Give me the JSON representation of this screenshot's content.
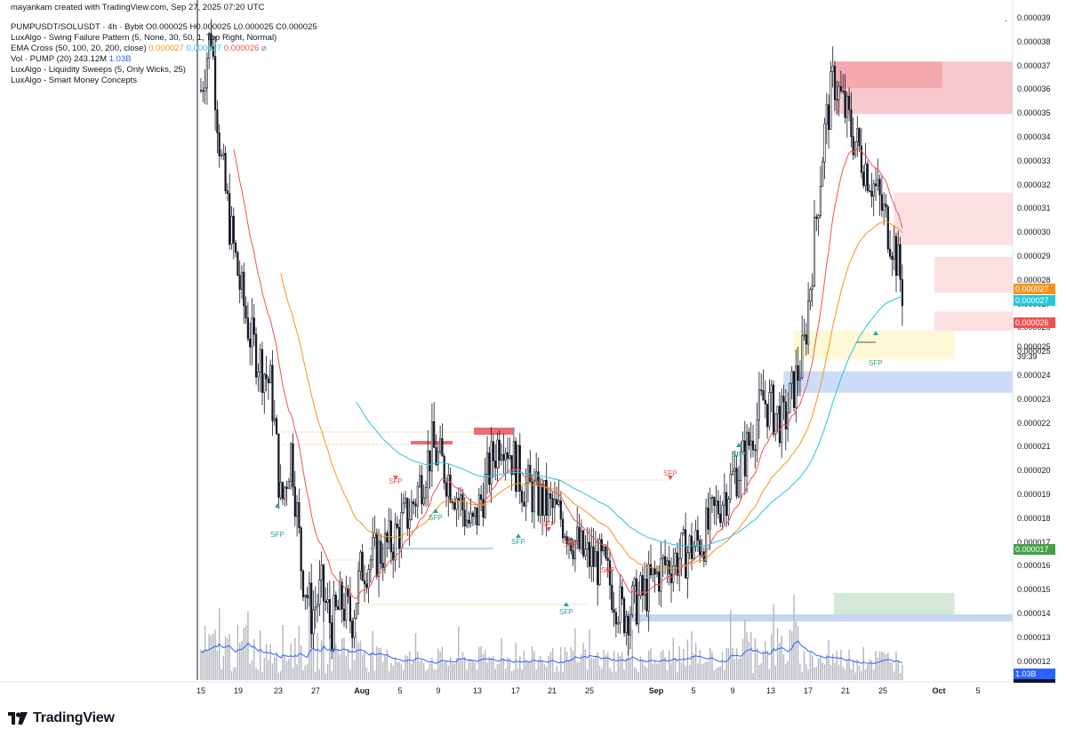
{
  "attribution": "mayankam created with TradingView.com, Sep 27, 2025 07:20 UTC",
  "legend": {
    "symbol_line": "PUMPUSDT/SOLUSDT · 4h · Bybit  O0.000025  H0.000025  L0.000025  C0.000025",
    "sfp_line": "LuxAlgo - Swing Failure Pattern (5, None, 30, 50, 1, Top Right, Normal)",
    "ema_label": "EMA Cross (50, 100, 20, 200, close)",
    "ema_v1": "0.000027",
    "ema_v2": "0.000027",
    "ema_v3": "0.000026",
    "ema_v4": "⌀",
    "vol_label": "Vol · PUMP (20)",
    "vol_v1": "243.12M",
    "vol_v2": "1.03B",
    "sweeps_line": "LuxAlgo - Liquidity Sweeps (5, Only Wicks, 25)",
    "smc_line": "LuxAlgo - Smart Money Concepts"
  },
  "price_axis": {
    "ticks": [
      "0.000039",
      "0.000038",
      "0.000037",
      "0.000036",
      "0.000035",
      "0.000034",
      "0.000033",
      "0.000032",
      "0.000031",
      "0.000030",
      "0.000029",
      "0.000028",
      "0.000027",
      "0.000026",
      "0.000025",
      "0.000024",
      "0.000023",
      "0.000022",
      "0.000021",
      "0.000020",
      "0.000019",
      "0.000018",
      "0.000017",
      "0.000016",
      "0.000015",
      "0.000014",
      "0.000013",
      "0.000012"
    ],
    "tags": {
      "ema_orange": "0.000027",
      "ema_cyan": "0.000027",
      "ema_red": "0.000026",
      "close": "0.000025",
      "countdown": "39:39",
      "green": "0.000017",
      "volume": "1.03B"
    },
    "colors": {
      "orange": "#f7931a",
      "cyan": "#26c6da",
      "red": "#ef5350",
      "green": "#43a047",
      "blue": "#2962ff"
    }
  },
  "time_axis": {
    "ticks": [
      "15",
      "19",
      "23",
      "27",
      "Aug",
      "5",
      "9",
      "13",
      "17",
      "21",
      "25",
      "Sep",
      "5",
      "9",
      "13",
      "17",
      "21",
      "25",
      "Oct",
      "5"
    ]
  },
  "sfp_labels": {
    "label": "SFP"
  },
  "brand": "TradingView",
  "chart_data": {
    "type": "candlestick",
    "title": "PUMPUSDT/SOLUSDT",
    "interval": "4h",
    "exchange": "Bybit",
    "ylim": [
      1.15e-05,
      3.95e-05
    ],
    "x_range": [
      "Jul 15",
      "Oct 7"
    ],
    "ohlc_last": {
      "open": 2.5e-05,
      "high": 2.5e-05,
      "low": 2.5e-05,
      "close": 2.5e-05
    },
    "price_path": [
      [
        "Jul 15",
        3.6e-05
      ],
      [
        "Jul 16",
        3.85e-05
      ],
      [
        "Jul 17",
        3.3e-05
      ],
      [
        "Jul 18",
        3e-05
      ],
      [
        "Jul 19",
        2.75e-05
      ],
      [
        "Jul 20",
        2.55e-05
      ],
      [
        "Jul 21",
        2.45e-05
      ],
      [
        "Jul 22",
        2.35e-05
      ],
      [
        "Jul 23",
        1.85e-05
      ],
      [
        "Jul 24",
        2.1e-05
      ],
      [
        "Jul 25",
        1.6e-05
      ],
      [
        "Jul 26",
        1.4e-05
      ],
      [
        "Jul 27",
        1.5e-05
      ],
      [
        "Jul 28",
        1.35e-05
      ],
      [
        "Jul 29",
        1.45e-05
      ],
      [
        "Jul 30",
        1.38e-05
      ],
      [
        "Jul 31",
        1.6e-05
      ],
      [
        "Aug 2",
        1.7e-05
      ],
      [
        "Aug 4",
        1.85e-05
      ],
      [
        "Aug 6",
        2.1e-05
      ],
      [
        "Aug 8",
        1.95e-05
      ],
      [
        "Aug 10",
        1.75e-05
      ],
      [
        "Aug 12",
        2.05e-05
      ],
      [
        "Aug 13",
        2.17e-05
      ],
      [
        "Aug 15",
        1.95e-05
      ],
      [
        "Aug 17",
        1.87e-05
      ],
      [
        "Aug 19",
        1.8e-05
      ],
      [
        "Aug 21",
        1.65e-05
      ],
      [
        "Aug 23",
        1.6e-05
      ],
      [
        "Aug 25",
        1.4e-05
      ],
      [
        "Aug 27",
        1.48e-05
      ],
      [
        "Aug 29",
        1.6e-05
      ],
      [
        "Aug 31",
        1.65e-05
      ],
      [
        "Sep 2",
        1.72e-05
      ],
      [
        "Sep 4",
        1.9e-05
      ],
      [
        "Sep 6",
        2.05e-05
      ],
      [
        "Sep 8",
        2.3e-05
      ],
      [
        "Sep 10",
        2.2e-05
      ],
      [
        "Sep 12",
        2.5e-05
      ],
      [
        "Sep 14",
        3.4e-05
      ],
      [
        "Sep 15",
        3.65e-05
      ],
      [
        "Sep 17",
        3.4e-05
      ],
      [
        "Sep 19",
        3.2e-05
      ],
      [
        "Sep 21",
        2.95e-05
      ],
      [
        "Sep 22",
        2.72e-05
      ],
      [
        "Sep 23",
        2.55e-05
      ],
      [
        "Sep 24",
        2.8e-05
      ],
      [
        "Sep 25",
        2.6e-05
      ],
      [
        "Sep 26",
        2.62e-05
      ],
      [
        "Sep 27",
        2.5e-05
      ]
    ],
    "series": [
      {
        "name": "EMA 20",
        "color": "#ef5350"
      },
      {
        "name": "EMA 50",
        "color": "#f7931a"
      },
      {
        "name": "EMA 100",
        "color": "#26c6da"
      },
      {
        "name": "Vol · PUMP (20)",
        "color": "#2962ff"
      }
    ],
    "zones": [
      {
        "kind": "supply",
        "color": "#f8c9cc",
        "from": "Sep 15",
        "to": "Oct 7",
        "low": 3.5e-05,
        "high": 3.72e-05
      },
      {
        "kind": "supply",
        "color": "#fbe0e2",
        "from": "Sep 21",
        "to": "Oct 7",
        "low": 2.95e-05,
        "high": 3.17e-05
      },
      {
        "kind": "supply",
        "color": "#fbe0e2",
        "from": "Sep 25",
        "to": "Oct 7",
        "low": 2.75e-05,
        "high": 2.9e-05
      },
      {
        "kind": "supply",
        "color": "#fbe0e2",
        "from": "Sep 25",
        "to": "Oct 7",
        "low": 2.59e-05,
        "high": 2.67e-05
      },
      {
        "kind": "equilibrium",
        "color": "#fdf8d6",
        "from": "Sep 11",
        "to": "Sep 27",
        "low": 2.47e-05,
        "high": 2.59e-05
      },
      {
        "kind": "demand",
        "color": "#cddcf7",
        "from": "Sep 10",
        "to": "Oct 7",
        "low": 2.33e-05,
        "high": 2.42e-05
      },
      {
        "kind": "demand",
        "color": "#d4e8d6",
        "from": "Sep 15",
        "to": "Sep 27",
        "low": 1.38e-05,
        "high": 1.49e-05
      },
      {
        "kind": "demand",
        "color": "#c8d6f0",
        "from": "Aug 25",
        "to": "Oct 7",
        "low": 1.37e-05,
        "high": 1.4e-05
      }
    ],
    "grid": false
  }
}
